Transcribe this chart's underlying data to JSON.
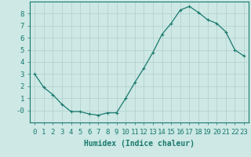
{
  "x": [
    0,
    1,
    2,
    3,
    4,
    5,
    6,
    7,
    8,
    9,
    10,
    11,
    12,
    13,
    14,
    15,
    16,
    17,
    18,
    19,
    20,
    21,
    22,
    23
  ],
  "y": [
    3.0,
    1.9,
    1.3,
    0.5,
    -0.1,
    -0.1,
    -0.3,
    -0.4,
    -0.2,
    -0.2,
    1.0,
    2.3,
    3.5,
    4.8,
    6.3,
    7.2,
    8.3,
    8.6,
    8.1,
    7.5,
    7.2,
    6.5,
    5.0,
    4.5
  ],
  "line_color": "#1a7a6e",
  "marker": "+",
  "marker_size": 3,
  "bg_color": "#cde8e5",
  "grid_color": "#b0cfcc",
  "label_color": "#1a7a6e",
  "xlabel": "Humidex (Indice chaleur)",
  "xlim": [
    -0.5,
    23.5
  ],
  "ylim": [
    -1.0,
    9.0
  ],
  "yticks": [
    0,
    1,
    2,
    3,
    4,
    5,
    6,
    7,
    8
  ],
  "ytick_labels": [
    "-0",
    "1",
    "2",
    "3",
    "4",
    "5",
    "6",
    "7",
    "8"
  ],
  "xticks": [
    0,
    1,
    2,
    3,
    4,
    5,
    6,
    7,
    8,
    9,
    10,
    11,
    12,
    13,
    14,
    15,
    16,
    17,
    18,
    19,
    20,
    21,
    22,
    23
  ],
  "font_size": 6.5,
  "xlabel_fontsize": 7.0,
  "linewidth": 0.9,
  "markeredgewidth": 0.8
}
